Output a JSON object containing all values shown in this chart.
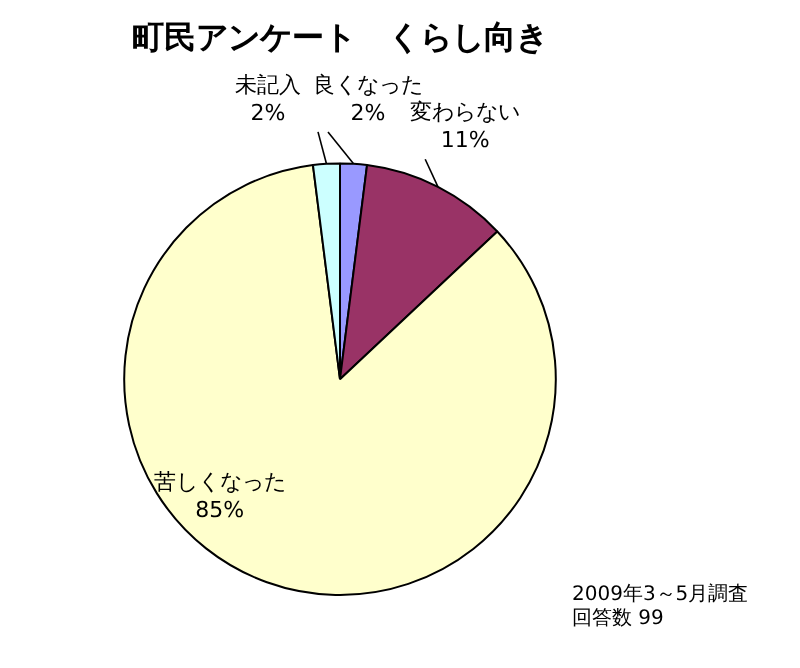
{
  "chart_data": {
    "type": "pie",
    "title": "町民アンケート　くらし向き",
    "categories": [
      "良くなった",
      "変わらない",
      "苦しくなった",
      "未記入"
    ],
    "values": [
      2,
      11,
      85,
      2
    ],
    "value_labels": [
      "2%",
      "11%",
      "85%",
      "2%"
    ],
    "colors": [
      "#9999ff",
      "#993366",
      "#ffffcc",
      "#ccffff"
    ],
    "legend": false,
    "annotations": [
      "2009年3～5月調査",
      "回答数 99"
    ]
  }
}
